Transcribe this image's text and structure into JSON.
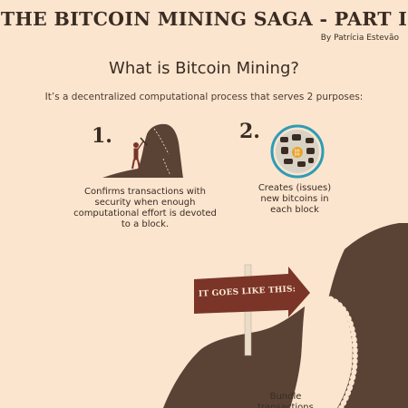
{
  "header": {
    "title": "THE BITCOIN MINING SAGA - PART I",
    "byline": "By Patrícia Estevão"
  },
  "section": {
    "heading": "What is Bitcoin Mining?",
    "intro": "It’s a decentralized computational process that serves 2 purposes:"
  },
  "purposes": [
    {
      "number": "1.",
      "text": "Confirms transactions with security when enough computational effort is devoted to a block.",
      "icon": "miner-icon"
    },
    {
      "number": "2.",
      "text": "Creates (issues) new bitcoins in each block",
      "icon": "bitcoin-block-icon"
    }
  ],
  "sign": {
    "text": "IT GOES LIKE THIS:"
  },
  "steps": [
    {
      "text": "Bundle transactions"
    }
  ],
  "colors": {
    "background": "#fbe5cf",
    "rock": "#5a4335",
    "arrow": "#7a3528",
    "text": "#3a2c22",
    "accent": "#e8a42a"
  }
}
